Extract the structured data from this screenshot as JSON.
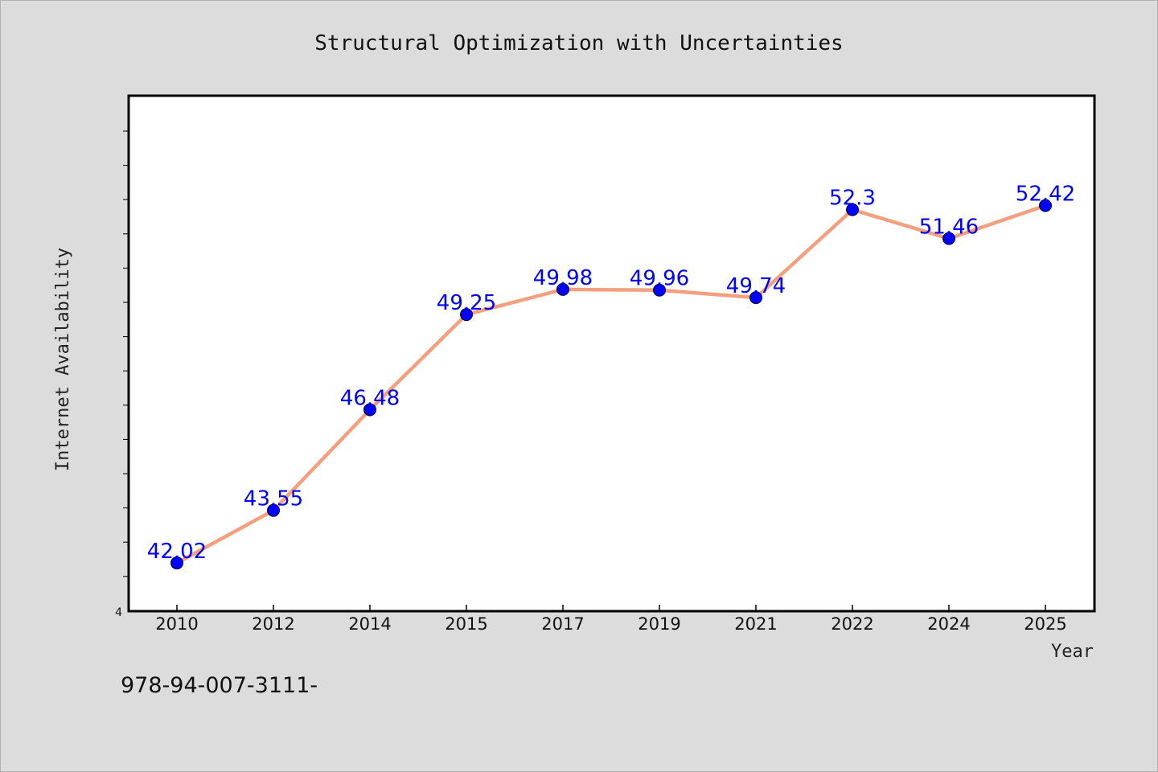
{
  "chart_data": {
    "type": "line",
    "title": "Structural Optimization with Uncertainties",
    "xlabel": "Year",
    "ylabel": "Internet Availability",
    "categories": [
      "2010",
      "2012",
      "2014",
      "2015",
      "2017",
      "2019",
      "2021",
      "2022",
      "2024",
      "2025"
    ],
    "series": [
      {
        "values": [
          42.02,
          43.55,
          46.48,
          49.25,
          49.98,
          49.96,
          49.74,
          52.3,
          51.46,
          52.42
        ],
        "data_labels": [
          "42.02",
          "43.55",
          "46.48",
          "49.25",
          "49.98",
          "49.96",
          "49.74",
          "52.3",
          "51.46",
          "52.42"
        ],
        "line_color": "#f4a07e",
        "marker_color": "#0000ff",
        "label_color": "#0000ff"
      }
    ],
    "y_tick_labels": [
      "4"
    ],
    "ylim": [
      40.5,
      55.5
    ],
    "grid": false,
    "legend": false
  },
  "footer": {
    "text": "978-94-007-3111-"
  },
  "colors": {
    "page_background": "#dcdcdc",
    "plot_background": "#ffffff",
    "axis": "#000000"
  }
}
